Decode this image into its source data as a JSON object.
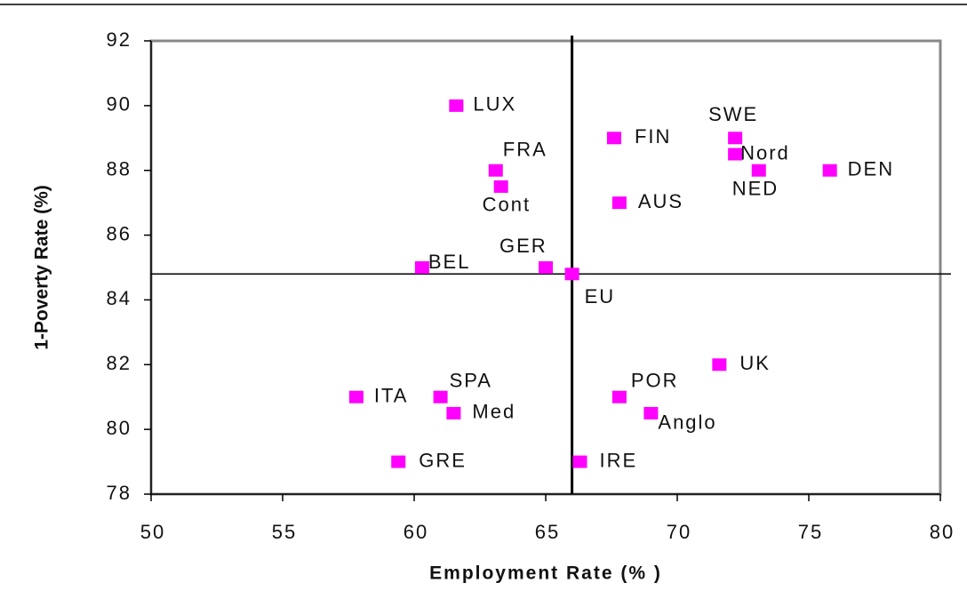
{
  "chart_data": {
    "type": "scatter",
    "xlabel": "Employment Rate (% )",
    "ylabel": "1-Poverty Rate (%)",
    "labels": [
      "LUX",
      "FIN",
      "SWE",
      "Nord",
      "NED",
      "DEN",
      "FRA",
      "Cont",
      "AUS",
      "BEL",
      "GER",
      "EU",
      "UK",
      "ITA",
      "SPA",
      "POR",
      "Med",
      "Anglo",
      "GRE",
      "IRE"
    ],
    "x": [
      61.6,
      67.6,
      72.2,
      72.2,
      73.1,
      75.8,
      63.1,
      63.3,
      67.8,
      60.3,
      65.0,
      66.0,
      71.6,
      57.8,
      61.0,
      67.8,
      61.5,
      69.0,
      59.4,
      66.3
    ],
    "values": [
      90,
      89,
      89,
      88.5,
      88,
      88,
      88,
      87.5,
      87,
      85,
      85,
      84.8,
      82,
      81,
      81,
      81,
      80.5,
      80.5,
      79,
      79
    ],
    "color": "#ff00ff",
    "xlim": [
      50,
      80
    ],
    "xticks": [
      50,
      55,
      60,
      65,
      70,
      75,
      80
    ],
    "ylim": [
      78,
      92
    ],
    "yticks": [
      78,
      80,
      82,
      84,
      86,
      88,
      90,
      92
    ]
  }
}
